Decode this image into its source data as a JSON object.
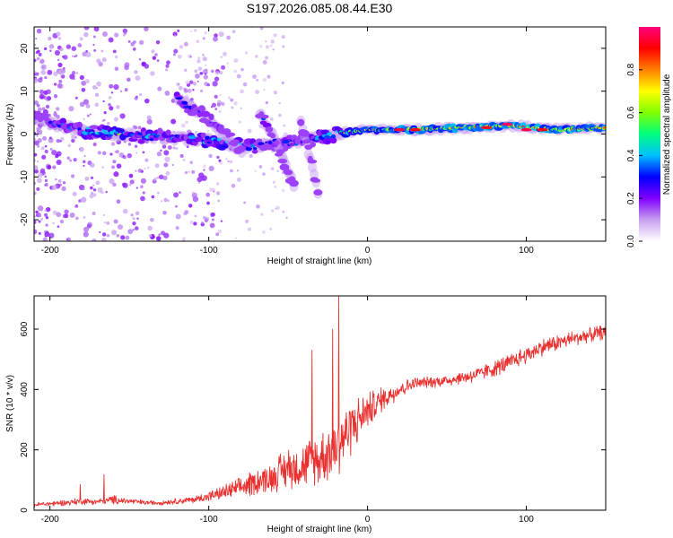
{
  "title": "S197.2026.085.08.44.E30",
  "chart_data": [
    {
      "type": "heatmap",
      "title": "S197.2026.085.08.44.E30",
      "xlabel": "Height of straight line (km)",
      "ylabel": "Frequency (Hz)",
      "xlim": [
        -210,
        150
      ],
      "ylim": [
        -25,
        25
      ],
      "xticks": [
        -200,
        -100,
        0,
        100
      ],
      "yticks": [
        -20,
        -10,
        0,
        10,
        20
      ],
      "colorbar": {
        "label": "Normalized spectral amplitude",
        "range": [
          0,
          1
        ],
        "ticks": [
          0.0,
          0.2,
          0.4,
          0.6,
          0.8
        ],
        "colormap": [
          "#ffffff",
          "#c7a0f0",
          "#8000ff",
          "#0000ff",
          "#00c0ff",
          "#00ff80",
          "#80ff00",
          "#ffff00",
          "#ff8000",
          "#ff0000",
          "#ff0080"
        ]
      },
      "features": [
        {
          "name": "main-trace",
          "points": [
            [
              -210,
              4
            ],
            [
              -195,
              2
            ],
            [
              -180,
              1
            ],
            [
              -160,
              0
            ],
            [
              -140,
              -0.5
            ],
            [
              -120,
              -1
            ],
            [
              -100,
              -1.5
            ],
            [
              -85,
              -2.5
            ],
            [
              -75,
              -3
            ],
            [
              -60,
              -2.5
            ],
            [
              -40,
              -1.5
            ],
            [
              -20,
              0
            ],
            [
              0,
              1
            ],
            [
              30,
              1
            ],
            [
              60,
              1.5
            ],
            [
              90,
              2
            ],
            [
              120,
              1
            ],
            [
              150,
              1.5
            ]
          ],
          "amplitude": [
            0.35,
            0.4,
            0.45,
            0.5,
            0.45,
            0.4,
            0.5,
            0.45,
            0.4,
            0.3,
            0.35,
            0.55,
            0.7,
            0.75,
            0.8,
            0.85,
            0.8,
            0.7
          ]
        },
        {
          "name": "descending-branch-1",
          "points": [
            [
              -120,
              8
            ],
            [
              -105,
              5
            ],
            [
              -90,
              0
            ],
            [
              -78,
              -5
            ]
          ],
          "amplitude": [
            0.35,
            0.3,
            0.3,
            0.25
          ]
        },
        {
          "name": "descending-branch-2",
          "points": [
            [
              -68,
              5
            ],
            [
              -60,
              0
            ],
            [
              -52,
              -7
            ],
            [
              -46,
              -12
            ]
          ],
          "amplitude": [
            0.4,
            0.3,
            0.25,
            0.2
          ]
        },
        {
          "name": "descending-branch-3",
          "points": [
            [
              -42,
              3
            ],
            [
              -38,
              -3
            ],
            [
              -34,
              -9
            ],
            [
              -31,
              -14
            ]
          ],
          "amplitude": [
            0.3,
            0.25,
            0.2,
            0.15
          ]
        }
      ]
    },
    {
      "type": "line",
      "xlabel": "Height of straight line (km)",
      "ylabel": "SNR (10 * v/v)",
      "xlim": [
        -210,
        150
      ],
      "ylim": [
        0,
        710
      ],
      "xticks": [
        -200,
        -100,
        0,
        100
      ],
      "yticks": [
        0,
        200,
        400,
        600
      ],
      "series": [
        {
          "name": "SNR",
          "color": "#e8302e",
          "trend": {
            "x": [
              -210,
              -190,
              -180,
              -170,
              -160,
              -150,
              -140,
              -130,
              -120,
              -110,
              -100,
              -90,
              -80,
              -70,
              -60,
              -50,
              -40,
              -30,
              -20,
              -10,
              0,
              10,
              20,
              30,
              50,
              70,
              90,
              110,
              130,
              150
            ],
            "y": [
              18,
              25,
              30,
              28,
              35,
              30,
              25,
              25,
              30,
              35,
              45,
              60,
              75,
              95,
              110,
              140,
              150,
              170,
              210,
              280,
              330,
              370,
              400,
              420,
              430,
              450,
              490,
              540,
              570,
              590
            ],
            "noise": [
              8,
              10,
              12,
              10,
              15,
              10,
              8,
              8,
              10,
              12,
              18,
              25,
              35,
              45,
              55,
              70,
              80,
              90,
              110,
              100,
              60,
              40,
              30,
              20,
              20,
              25,
              30,
              30,
              25,
              25
            ]
          },
          "spikes": [
            {
              "x": -166,
              "y": 118
            },
            {
              "x": -181,
              "y": 85
            },
            {
              "x": -18,
              "y": 710
            },
            {
              "x": -22,
              "y": 600
            },
            {
              "x": -35,
              "y": 530
            }
          ]
        }
      ]
    }
  ]
}
